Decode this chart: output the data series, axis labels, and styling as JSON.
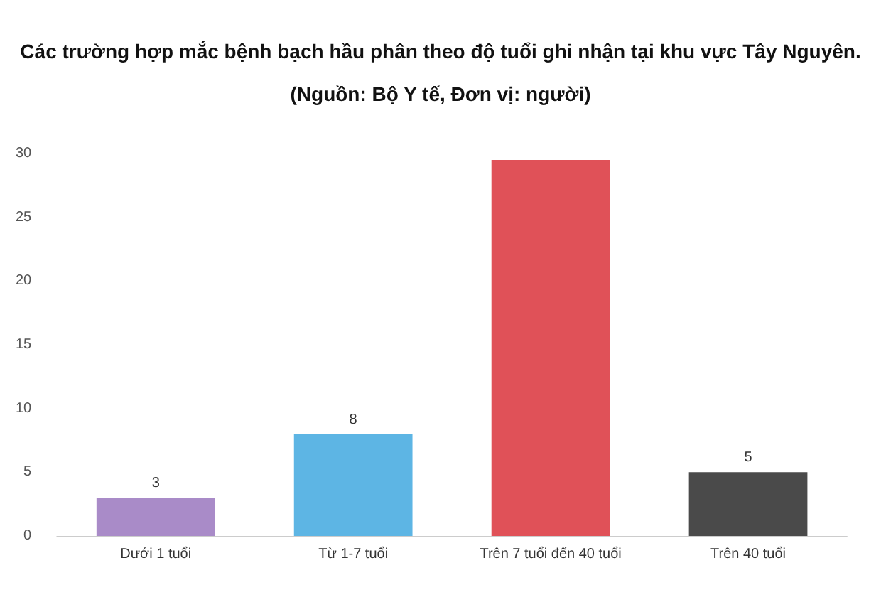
{
  "chart_data": {
    "type": "bar",
    "title": "Các trường hợp mắc bệnh bạch hầu phân theo độ tuổi ghi nhận tại khu vực Tây Nguyên.",
    "subtitle": "(Nguồn: Bộ Y tế, Đơn vị: người)",
    "categories": [
      "Dưới 1 tuổi",
      "Từ 1-7 tuổi",
      "Trên 7 tuổi đến 40 tuổi",
      "Trên 40 tuổi"
    ],
    "values": [
      3,
      8,
      29.5,
      5
    ],
    "value_labels": [
      "3",
      "8",
      null,
      "5"
    ],
    "colors": [
      "#a98bc8",
      "#5db5e4",
      "#e05158",
      "#4a4a4a"
    ],
    "ylim": [
      0,
      30
    ],
    "yticks": [
      0,
      5,
      10,
      15,
      20,
      25,
      30
    ],
    "grid": false
  }
}
